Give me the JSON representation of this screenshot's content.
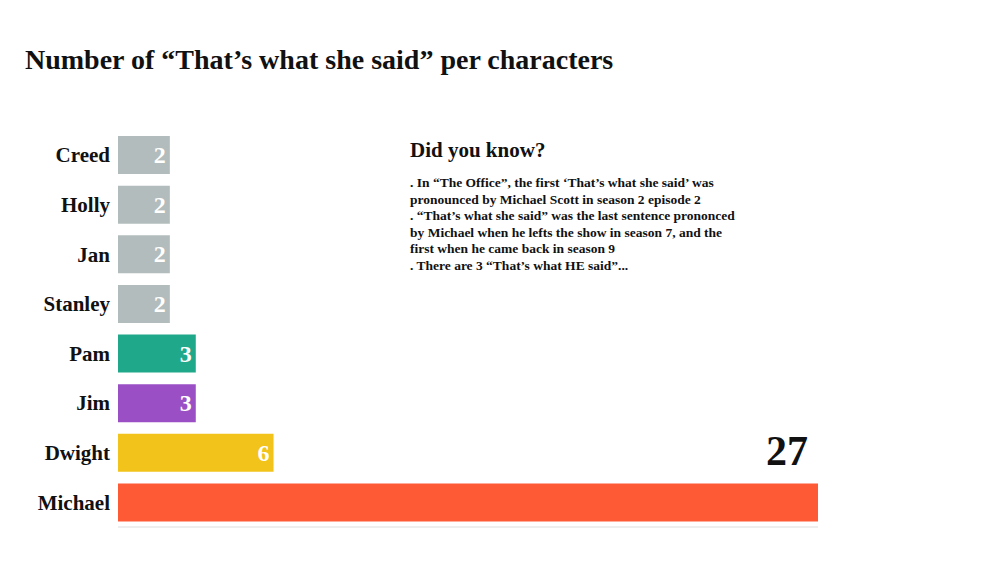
{
  "chart_data": {
    "type": "bar",
    "title": "Number of “That’s what she said” per characters",
    "orientation": "horizontal",
    "categories": [
      "Creed",
      "Holly",
      "Jan",
      "Stanley",
      "Pam",
      "Jim",
      "Dwight",
      "Michael"
    ],
    "values": [
      2,
      2,
      2,
      2,
      3,
      3,
      6,
      27
    ],
    "colors": [
      "#b3bcbc",
      "#b3bcbc",
      "#b3bcbc",
      "#b3bcbc",
      "#1fa88a",
      "#9a4fc4",
      "#f1c31b",
      "#ff5a36"
    ],
    "xlim": [
      0,
      27
    ],
    "grid": false,
    "data_labels": true,
    "tick_labels": "y",
    "annotations": [
      "Did you know?",
      ". In “The Office”, the first ‘That’s what she said’ was pronounced by Michael Scott in season 2 episode 2",
      ". “That’s what she said” was the last sentence prononced by Michael when he lefts the show in season 7, and the first when he came back in season 9",
      ". There are 3 “That’s what HE said”..."
    ]
  }
}
